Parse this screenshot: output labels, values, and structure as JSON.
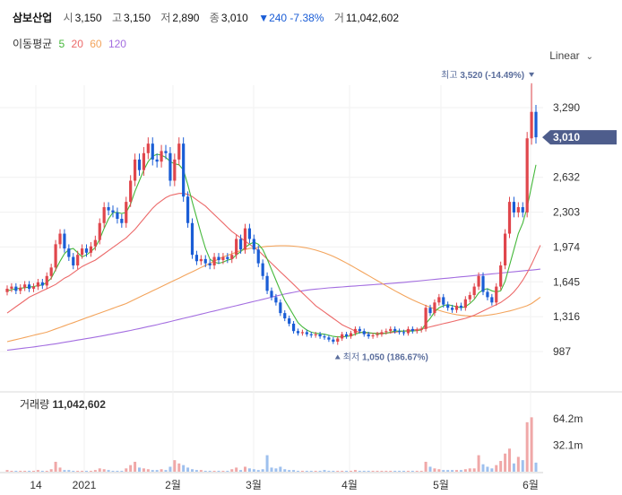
{
  "header": {
    "name": "삼보산업",
    "open_label": "시",
    "open": "3,150",
    "high_label": "고",
    "high": "3,150",
    "low_label": "저",
    "low": "2,890",
    "close_label": "종",
    "close": "3,010",
    "change": "▼240 -7.38%",
    "volume_label": "거",
    "volume": "11,042,602"
  },
  "ma_legend": {
    "label": "이동평균",
    "ma5": "5",
    "ma20": "20",
    "ma60": "60",
    "ma120": "120"
  },
  "scale_toggle": {
    "label": "Linear"
  },
  "colors": {
    "up": "#e0464c",
    "down": "#1a5dd6",
    "ma5": "#44b83a",
    "ma20": "#ec6a6a",
    "ma60": "#f3a45c",
    "ma120": "#a36de0",
    "current_tag": "#4e5d8c"
  },
  "chart_data": [
    {
      "type": "candlestick",
      "y_axis_ticks": [
        "3,290",
        "2,632",
        "2,303",
        "1,974",
        "1,645",
        "1,316",
        "987"
      ],
      "y_tick_values": [
        3290,
        2632,
        2303,
        1974,
        1645,
        1316,
        987
      ],
      "x_axis_ticks": [
        "14",
        "2021",
        "2월",
        "3월",
        "4월",
        "5월",
        "6월"
      ],
      "current_price_tag": "3,010",
      "current_price": 3010,
      "high_annotation": {
        "label": "최고",
        "value": "3,520 (-14.49%)",
        "price": 3520
      },
      "low_annotation": {
        "label": "최저",
        "value": "1,050 (186.67%)",
        "price": 1050
      },
      "closes": [
        1580,
        1600,
        1560,
        1590,
        1620,
        1580,
        1600,
        1640,
        1610,
        1700,
        1780,
        2000,
        2100,
        1960,
        1880,
        1800,
        1900,
        1960,
        1920,
        1980,
        2040,
        2200,
        2350,
        2320,
        2300,
        2240,
        2200,
        2400,
        2600,
        2800,
        2700,
        2860,
        2950,
        2800,
        2780,
        2880,
        2860,
        2600,
        2800,
        2950,
        2450,
        2200,
        1900,
        1840,
        1860,
        1820,
        1800,
        1880,
        1850,
        1880,
        1860,
        1900,
        2050,
        1950,
        2150,
        2050,
        1950,
        1820,
        1700,
        1560,
        1500,
        1450,
        1350,
        1300,
        1250,
        1180,
        1160,
        1170,
        1150,
        1140,
        1150,
        1130,
        1120,
        1100,
        1080,
        1110,
        1150,
        1130,
        1160,
        1200,
        1180,
        1150,
        1130,
        1140,
        1150,
        1170,
        1180,
        1200,
        1180,
        1170,
        1160,
        1200,
        1180,
        1190,
        1200,
        1400,
        1350,
        1450,
        1500,
        1430,
        1400,
        1380,
        1420,
        1400,
        1480,
        1520,
        1600,
        1700,
        1550,
        1500,
        1450,
        1600,
        1800,
        2100,
        2400,
        2300,
        2350,
        2300,
        3000,
        3250,
        3010
      ],
      "ma5": [
        1560,
        1570,
        1580,
        1585,
        1590,
        1595,
        1600,
        1610,
        1615,
        1640,
        1680,
        1760,
        1840,
        1910,
        1950,
        1960,
        1920,
        1880,
        1900,
        1930,
        1970,
        2050,
        2150,
        2240,
        2300,
        2300,
        2290,
        2300,
        2380,
        2500,
        2600,
        2700,
        2780,
        2830,
        2850,
        2840,
        2820,
        2780,
        2760,
        2750,
        2700,
        2560,
        2400,
        2250,
        2100,
        1960,
        1860,
        1830,
        1820,
        1830,
        1850,
        1860,
        1900,
        1930,
        1970,
        2000,
        2020,
        2000,
        1950,
        1860,
        1760,
        1660,
        1560,
        1470,
        1400,
        1330,
        1260,
        1220,
        1190,
        1170,
        1160,
        1155,
        1150,
        1140,
        1130,
        1125,
        1125,
        1130,
        1135,
        1150,
        1165,
        1170,
        1165,
        1160,
        1155,
        1155,
        1160,
        1170,
        1180,
        1180,
        1180,
        1180,
        1180,
        1185,
        1190,
        1250,
        1300,
        1360,
        1400,
        1420,
        1430,
        1420,
        1410,
        1400,
        1410,
        1440,
        1480,
        1540,
        1570,
        1580,
        1560,
        1550,
        1560,
        1650,
        1800,
        1950,
        2100,
        2200,
        2350,
        2550,
        2750
      ],
      "ma20": [
        1350,
        1380,
        1410,
        1440,
        1470,
        1500,
        1520,
        1540,
        1560,
        1580,
        1600,
        1620,
        1650,
        1680,
        1700,
        1730,
        1760,
        1790,
        1810,
        1830,
        1850,
        1880,
        1910,
        1940,
        1970,
        2000,
        2030,
        2060,
        2100,
        2140,
        2190,
        2240,
        2290,
        2340,
        2380,
        2410,
        2440,
        2460,
        2470,
        2480,
        2480,
        2470,
        2450,
        2420,
        2390,
        2360,
        2320,
        2280,
        2240,
        2200,
        2160,
        2120,
        2090,
        2060,
        2030,
        2000,
        1970,
        1940,
        1900,
        1860,
        1820,
        1780,
        1740,
        1700,
        1660,
        1620,
        1580,
        1540,
        1500,
        1460,
        1420,
        1390,
        1360,
        1330,
        1300,
        1270,
        1240,
        1220,
        1200,
        1180,
        1170,
        1165,
        1160,
        1160,
        1160,
        1160,
        1160,
        1165,
        1170,
        1175,
        1180,
        1185,
        1190,
        1195,
        1200,
        1210,
        1220,
        1230,
        1240,
        1250,
        1260,
        1270,
        1280,
        1290,
        1300,
        1315,
        1330,
        1350,
        1370,
        1390,
        1410,
        1430,
        1450,
        1480,
        1510,
        1550,
        1600,
        1660,
        1730,
        1810,
        1900,
        1990
      ],
      "ma60": [
        1080,
        1090,
        1100,
        1110,
        1120,
        1130,
        1140,
        1150,
        1160,
        1170,
        1185,
        1200,
        1215,
        1230,
        1245,
        1260,
        1275,
        1290,
        1305,
        1320,
        1335,
        1350,
        1365,
        1380,
        1395,
        1410,
        1425,
        1440,
        1460,
        1480,
        1500,
        1520,
        1540,
        1560,
        1580,
        1600,
        1620,
        1640,
        1660,
        1680,
        1700,
        1720,
        1740,
        1760,
        1780,
        1800,
        1820,
        1840,
        1860,
        1880,
        1895,
        1910,
        1925,
        1940,
        1950,
        1960,
        1965,
        1970,
        1975,
        1980,
        1982,
        1984,
        1985,
        1985,
        1984,
        1982,
        1978,
        1972,
        1965,
        1956,
        1945,
        1932,
        1918,
        1902,
        1885,
        1866,
        1845,
        1823,
        1800,
        1776,
        1752,
        1728,
        1704,
        1680,
        1656,
        1632,
        1608,
        1584,
        1560,
        1538,
        1516,
        1495,
        1475,
        1456,
        1438,
        1421,
        1405,
        1390,
        1376,
        1363,
        1352,
        1343,
        1335,
        1329,
        1325,
        1322,
        1321,
        1322,
        1325,
        1330,
        1336,
        1343,
        1351,
        1360,
        1370,
        1381,
        1393,
        1406,
        1420,
        1440,
        1470,
        1500
      ],
      "ma120": [
        1000,
        1005,
        1010,
        1015,
        1020,
        1025,
        1030,
        1036,
        1042,
        1048,
        1054,
        1060,
        1067,
        1074,
        1081,
        1088,
        1095,
        1102,
        1109,
        1116,
        1123,
        1130,
        1138,
        1146,
        1154,
        1162,
        1170,
        1178,
        1186,
        1195,
        1204,
        1213,
        1222,
        1231,
        1240,
        1250,
        1260,
        1270,
        1280,
        1290,
        1300,
        1310,
        1320,
        1330,
        1340,
        1350,
        1360,
        1370,
        1380,
        1390,
        1400,
        1410,
        1420,
        1430,
        1440,
        1450,
        1460,
        1470,
        1480,
        1490,
        1500,
        1510,
        1520,
        1530,
        1538,
        1546,
        1554,
        1560,
        1566,
        1572,
        1576,
        1580,
        1584,
        1588,
        1591,
        1594,
        1597,
        1600,
        1603,
        1606,
        1609,
        1612,
        1615,
        1618,
        1621,
        1624,
        1627,
        1630,
        1633,
        1636,
        1640,
        1644,
        1648,
        1652,
        1656,
        1660,
        1664,
        1668,
        1672,
        1676,
        1680,
        1684,
        1688,
        1692,
        1696,
        1700,
        1704,
        1708,
        1712,
        1716,
        1720,
        1724,
        1728,
        1732,
        1736,
        1740,
        1744,
        1748,
        1752,
        1756,
        1760,
        1765
      ]
    },
    {
      "type": "bar",
      "label": "거래량",
      "value": "11,042,602",
      "y_axis_ticks": [
        "64.2m",
        "32.1m"
      ],
      "y_tick_values": [
        64.2,
        32.1
      ],
      "volumes_m": [
        2,
        1,
        1,
        0.5,
        1,
        1,
        1,
        2,
        1,
        1,
        3,
        12,
        5,
        2,
        2,
        1,
        1,
        1,
        1,
        1,
        2,
        4,
        3,
        2,
        1,
        1,
        1,
        4,
        8,
        12,
        5,
        4,
        3,
        2,
        2,
        3,
        2,
        6,
        14,
        10,
        8,
        5,
        3,
        2,
        2,
        1,
        1,
        1,
        1,
        1,
        1,
        3,
        5,
        2,
        6,
        4,
        3,
        2,
        3,
        20,
        5,
        4,
        6,
        3,
        2,
        2,
        1,
        1,
        1,
        1,
        1,
        1,
        2,
        1,
        1,
        1,
        1,
        1,
        1,
        2,
        1,
        1,
        1,
        1,
        1,
        1,
        1,
        1,
        1,
        1,
        1,
        1,
        1,
        1,
        1,
        12,
        6,
        4,
        3,
        2,
        2,
        2,
        2,
        2,
        3,
        4,
        4,
        20,
        9,
        6,
        4,
        8,
        13,
        22,
        28,
        10,
        18,
        14,
        60,
        66,
        11
      ]
    }
  ]
}
